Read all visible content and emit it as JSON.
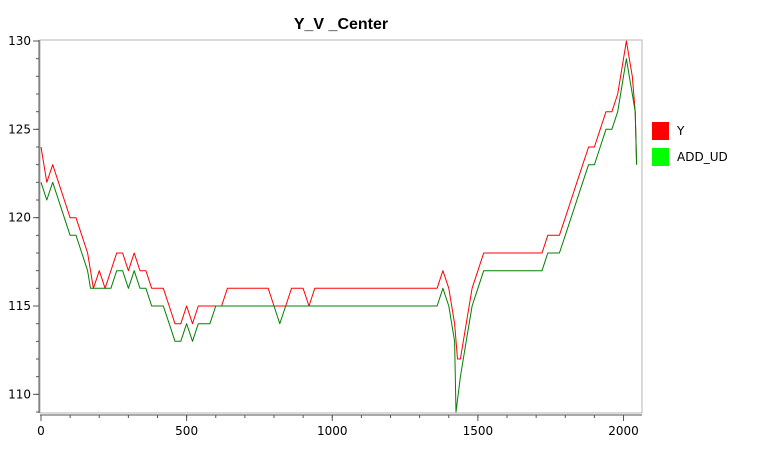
{
  "chart_data": {
    "type": "line",
    "title": "Y_V _Center",
    "xlabel": "",
    "ylabel": "",
    "xlim": [
      0,
      2060
    ],
    "ylim": [
      109,
      130
    ],
    "x_ticks": [
      0,
      500,
      1000,
      1500,
      2000
    ],
    "y_ticks": [
      110,
      115,
      120,
      125,
      130
    ],
    "grid": false,
    "legend_position": "right",
    "series": [
      {
        "name": "Y",
        "color": "#ff0000",
        "points": [
          [
            0,
            124
          ],
          [
            20,
            122
          ],
          [
            40,
            123
          ],
          [
            60,
            122
          ],
          [
            80,
            121
          ],
          [
            100,
            120
          ],
          [
            120,
            120
          ],
          [
            140,
            119
          ],
          [
            160,
            118
          ],
          [
            170,
            117
          ],
          [
            180,
            116
          ],
          [
            200,
            117
          ],
          [
            220,
            116
          ],
          [
            240,
            117
          ],
          [
            260,
            118
          ],
          [
            280,
            118
          ],
          [
            300,
            117
          ],
          [
            320,
            118
          ],
          [
            340,
            117
          ],
          [
            360,
            117
          ],
          [
            380,
            116
          ],
          [
            400,
            116
          ],
          [
            420,
            116
          ],
          [
            440,
            115
          ],
          [
            460,
            114
          ],
          [
            480,
            114
          ],
          [
            500,
            115
          ],
          [
            520,
            114
          ],
          [
            540,
            115
          ],
          [
            560,
            115
          ],
          [
            580,
            115
          ],
          [
            600,
            115
          ],
          [
            620,
            115
          ],
          [
            640,
            116
          ],
          [
            660,
            116
          ],
          [
            680,
            116
          ],
          [
            700,
            116
          ],
          [
            720,
            116
          ],
          [
            740,
            116
          ],
          [
            760,
            116
          ],
          [
            780,
            116
          ],
          [
            800,
            115
          ],
          [
            820,
            115
          ],
          [
            840,
            115
          ],
          [
            860,
            116
          ],
          [
            880,
            116
          ],
          [
            900,
            116
          ],
          [
            920,
            115
          ],
          [
            940,
            116
          ],
          [
            960,
            116
          ],
          [
            980,
            116
          ],
          [
            1000,
            116
          ],
          [
            1020,
            116
          ],
          [
            1040,
            116
          ],
          [
            1060,
            116
          ],
          [
            1080,
            116
          ],
          [
            1100,
            116
          ],
          [
            1120,
            116
          ],
          [
            1140,
            116
          ],
          [
            1160,
            116
          ],
          [
            1180,
            116
          ],
          [
            1200,
            116
          ],
          [
            1220,
            116
          ],
          [
            1240,
            116
          ],
          [
            1260,
            116
          ],
          [
            1280,
            116
          ],
          [
            1300,
            116
          ],
          [
            1320,
            116
          ],
          [
            1340,
            116
          ],
          [
            1360,
            116
          ],
          [
            1380,
            117
          ],
          [
            1400,
            116
          ],
          [
            1410,
            115
          ],
          [
            1420,
            114
          ],
          [
            1430,
            112
          ],
          [
            1440,
            112
          ],
          [
            1460,
            114
          ],
          [
            1480,
            116
          ],
          [
            1500,
            117
          ],
          [
            1520,
            118
          ],
          [
            1540,
            118
          ],
          [
            1560,
            118
          ],
          [
            1580,
            118
          ],
          [
            1600,
            118
          ],
          [
            1620,
            118
          ],
          [
            1640,
            118
          ],
          [
            1660,
            118
          ],
          [
            1680,
            118
          ],
          [
            1700,
            118
          ],
          [
            1720,
            118
          ],
          [
            1740,
            119
          ],
          [
            1760,
            119
          ],
          [
            1780,
            119
          ],
          [
            1800,
            120
          ],
          [
            1820,
            121
          ],
          [
            1840,
            122
          ],
          [
            1860,
            123
          ],
          [
            1880,
            124
          ],
          [
            1900,
            124
          ],
          [
            1920,
            125
          ],
          [
            1940,
            126
          ],
          [
            1960,
            126
          ],
          [
            1980,
            127
          ],
          [
            2000,
            129
          ],
          [
            2010,
            130
          ],
          [
            2020,
            129
          ],
          [
            2030,
            128
          ],
          [
            2040,
            126
          ],
          [
            2045,
            123
          ]
        ]
      },
      {
        "name": "ADD_UD",
        "color": "#008000",
        "points": [
          [
            0,
            122
          ],
          [
            20,
            121
          ],
          [
            40,
            122
          ],
          [
            60,
            121
          ],
          [
            80,
            120
          ],
          [
            100,
            119
          ],
          [
            120,
            119
          ],
          [
            140,
            118
          ],
          [
            160,
            117
          ],
          [
            170,
            116
          ],
          [
            180,
            116
          ],
          [
            200,
            116
          ],
          [
            220,
            116
          ],
          [
            240,
            116
          ],
          [
            260,
            117
          ],
          [
            280,
            117
          ],
          [
            300,
            116
          ],
          [
            320,
            117
          ],
          [
            340,
            116
          ],
          [
            360,
            116
          ],
          [
            380,
            115
          ],
          [
            400,
            115
          ],
          [
            420,
            115
          ],
          [
            440,
            114
          ],
          [
            460,
            113
          ],
          [
            480,
            113
          ],
          [
            500,
            114
          ],
          [
            520,
            113
          ],
          [
            540,
            114
          ],
          [
            560,
            114
          ],
          [
            580,
            114
          ],
          [
            600,
            115
          ],
          [
            620,
            115
          ],
          [
            640,
            115
          ],
          [
            660,
            115
          ],
          [
            680,
            115
          ],
          [
            700,
            115
          ],
          [
            720,
            115
          ],
          [
            740,
            115
          ],
          [
            760,
            115
          ],
          [
            780,
            115
          ],
          [
            800,
            115
          ],
          [
            820,
            114
          ],
          [
            840,
            115
          ],
          [
            860,
            115
          ],
          [
            880,
            115
          ],
          [
            900,
            115
          ],
          [
            920,
            115
          ],
          [
            940,
            115
          ],
          [
            960,
            115
          ],
          [
            980,
            115
          ],
          [
            1000,
            115
          ],
          [
            1020,
            115
          ],
          [
            1040,
            115
          ],
          [
            1060,
            115
          ],
          [
            1080,
            115
          ],
          [
            1100,
            115
          ],
          [
            1120,
            115
          ],
          [
            1140,
            115
          ],
          [
            1160,
            115
          ],
          [
            1180,
            115
          ],
          [
            1200,
            115
          ],
          [
            1220,
            115
          ],
          [
            1240,
            115
          ],
          [
            1260,
            115
          ],
          [
            1280,
            115
          ],
          [
            1300,
            115
          ],
          [
            1320,
            115
          ],
          [
            1340,
            115
          ],
          [
            1360,
            115
          ],
          [
            1380,
            116
          ],
          [
            1400,
            115
          ],
          [
            1410,
            114
          ],
          [
            1420,
            113
          ],
          [
            1425,
            109
          ],
          [
            1440,
            111
          ],
          [
            1460,
            113
          ],
          [
            1480,
            115
          ],
          [
            1500,
            116
          ],
          [
            1520,
            117
          ],
          [
            1540,
            117
          ],
          [
            1560,
            117
          ],
          [
            1580,
            117
          ],
          [
            1600,
            117
          ],
          [
            1620,
            117
          ],
          [
            1640,
            117
          ],
          [
            1660,
            117
          ],
          [
            1680,
            117
          ],
          [
            1700,
            117
          ],
          [
            1720,
            117
          ],
          [
            1740,
            118
          ],
          [
            1760,
            118
          ],
          [
            1780,
            118
          ],
          [
            1800,
            119
          ],
          [
            1820,
            120
          ],
          [
            1840,
            121
          ],
          [
            1860,
            122
          ],
          [
            1880,
            123
          ],
          [
            1900,
            123
          ],
          [
            1920,
            124
          ],
          [
            1940,
            125
          ],
          [
            1960,
            125
          ],
          [
            1980,
            126
          ],
          [
            2000,
            128
          ],
          [
            2010,
            129
          ],
          [
            2020,
            128
          ],
          [
            2030,
            127
          ],
          [
            2040,
            126
          ],
          [
            2045,
            123
          ]
        ]
      }
    ]
  }
}
